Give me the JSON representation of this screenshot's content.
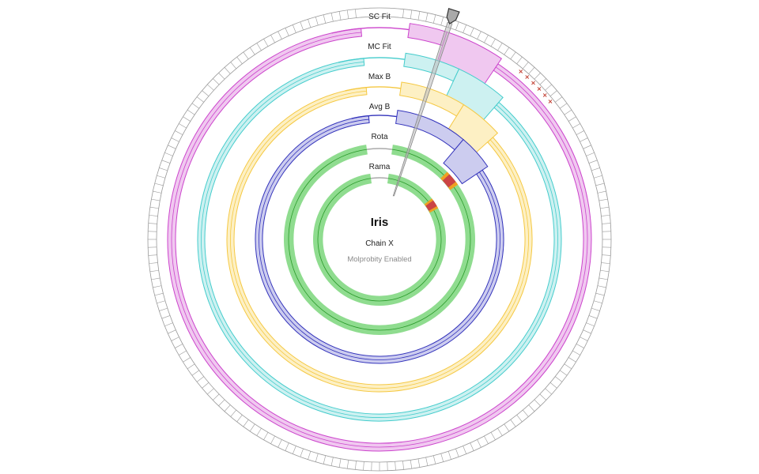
{
  "center": {
    "title": "Iris",
    "chain": "Chain X",
    "note": "Molprobity Enabled"
  },
  "residue_count": 180,
  "selected_residue_fraction": 0.05,
  "rings": [
    {
      "id": "sc_fit",
      "label": "SC Fit",
      "color": "#cc44cc",
      "fill": "#f0c8f0",
      "outlier_count": 6
    },
    {
      "id": "mc_fit",
      "label": "MC Fit",
      "color": "#44cccc",
      "fill": "#cdf1f1"
    },
    {
      "id": "max_b",
      "label": "Max B",
      "color": "#f5c842",
      "fill": "#fdf0c4"
    },
    {
      "id": "avg_b",
      "label": "Avg B",
      "color": "#3333bb",
      "fill": "#ccccef"
    },
    {
      "id": "rota",
      "label": "Rota",
      "color": "#2a9a2a",
      "fill": "#8fdc8f"
    },
    {
      "id": "rama",
      "label": "Rama",
      "color": "#2a9a2a",
      "fill": "#8fdc8f"
    }
  ],
  "colors": {
    "outlier_red": "#cc4444",
    "outlier_orange": "#f0a020",
    "gap_gray": "#aaaaaa",
    "tick_stroke": "#999999",
    "selector_fill": "#bbbbbb"
  },
  "icons": {
    "selector": "residue-selector-pointer-icon",
    "outlier": "outlier-cross-icon"
  }
}
